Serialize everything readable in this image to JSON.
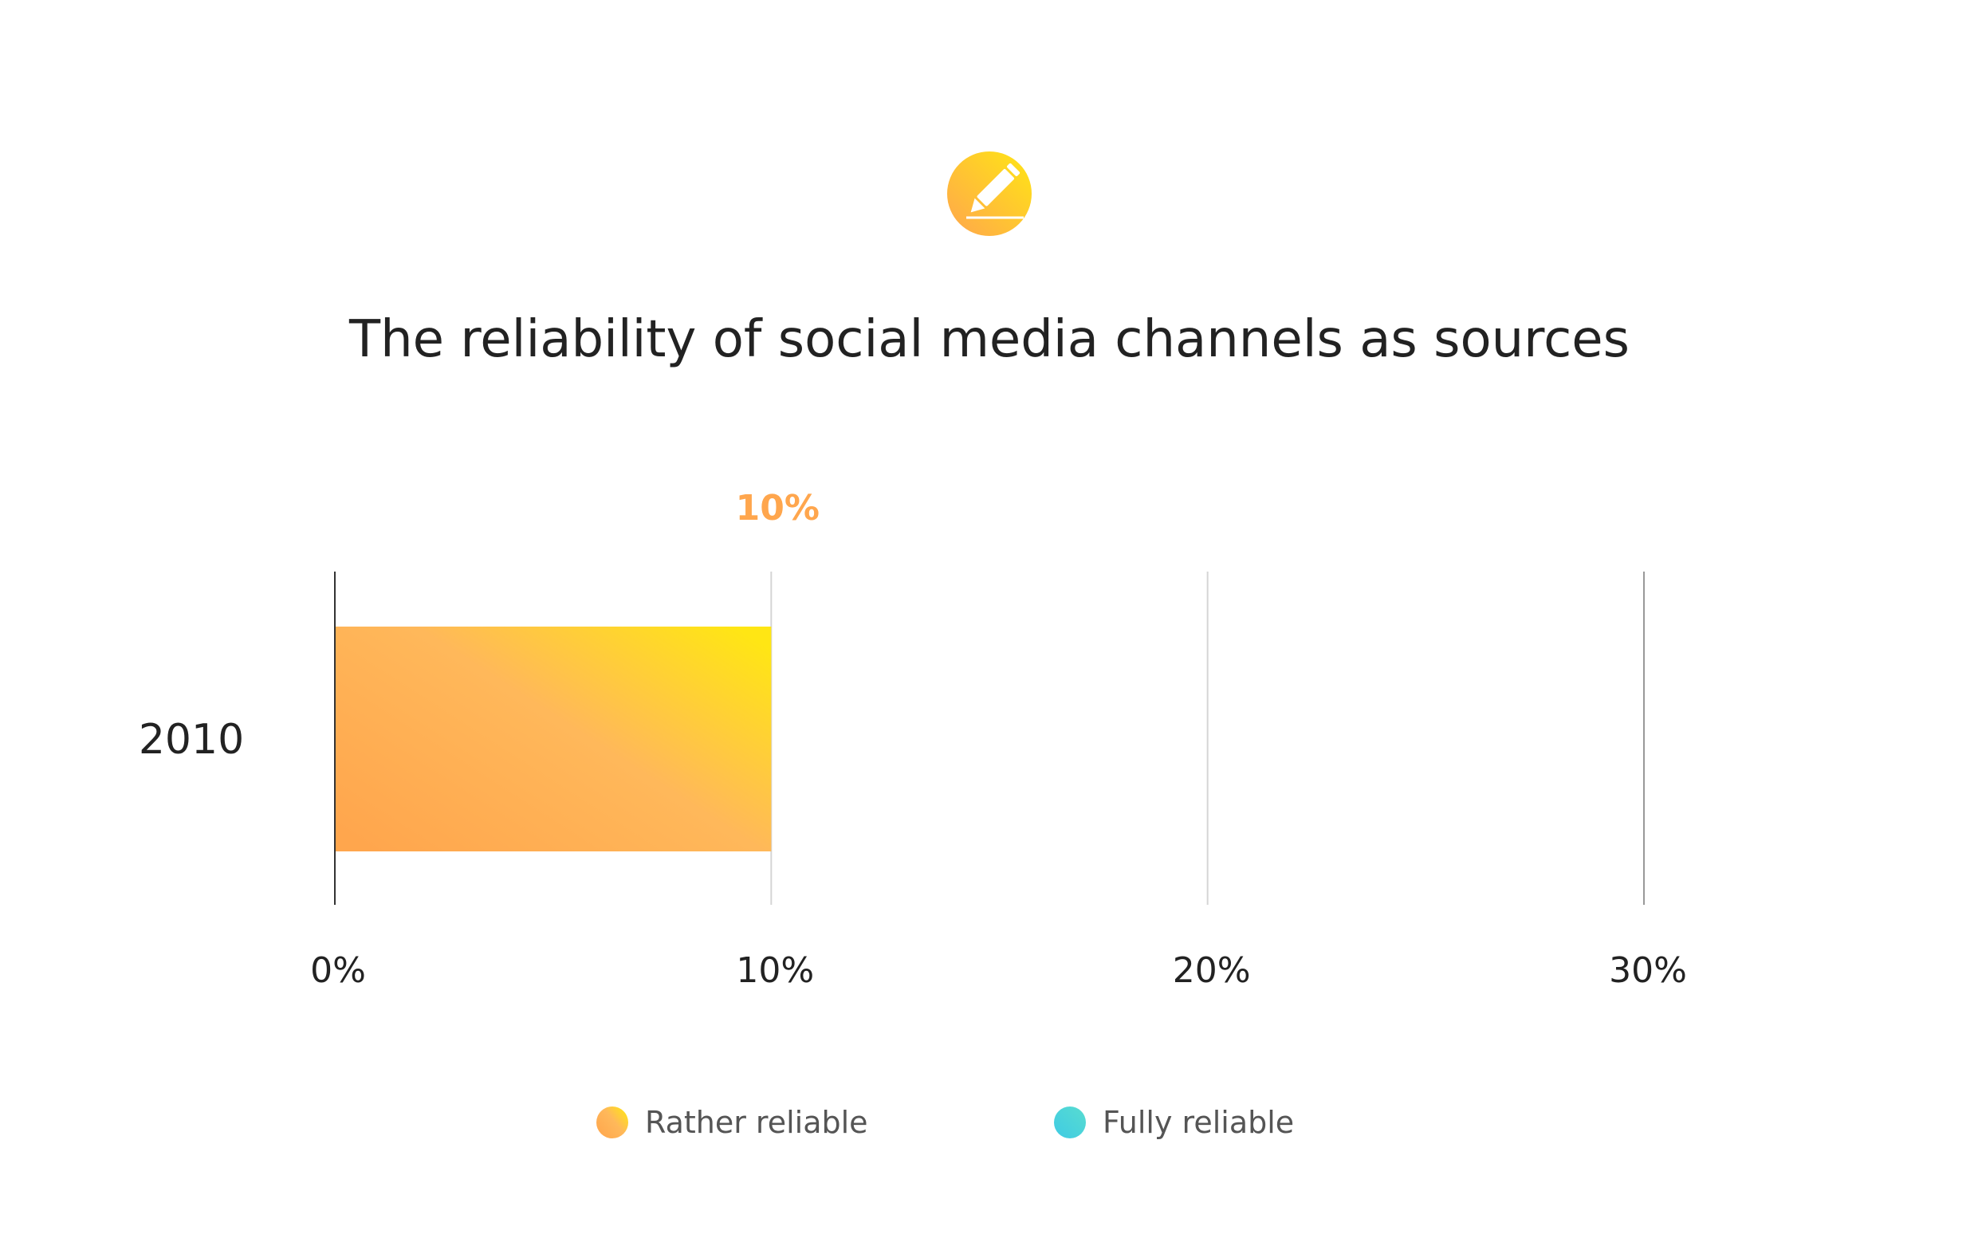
{
  "title": "The reliability of social media channels as sources",
  "icon": "pencil-icon",
  "colors": {
    "rather_start": "#ffa64d",
    "rather_end": "#ffe614",
    "fully_start": "#3fcbe4",
    "fully_end": "#58dcd0",
    "value_label": "#ffa64d",
    "text": "#222222",
    "legend_text": "#555555"
  },
  "chart_data": {
    "type": "bar",
    "orientation": "horizontal",
    "title": "The reliability of social media channels as sources",
    "categories": [
      "2010"
    ],
    "series": [
      {
        "name": "Rather reliable",
        "values": [
          10
        ]
      },
      {
        "name": "Fully reliable",
        "values": [
          null
        ]
      }
    ],
    "data_labels": [
      "10%"
    ],
    "x_ticks": [
      "0%",
      "10%",
      "20%",
      "30%"
    ],
    "xlim": [
      0,
      30
    ],
    "grid": true,
    "legend": {
      "position": "bottom",
      "entries": [
        "Rather reliable",
        "Fully reliable"
      ]
    }
  }
}
